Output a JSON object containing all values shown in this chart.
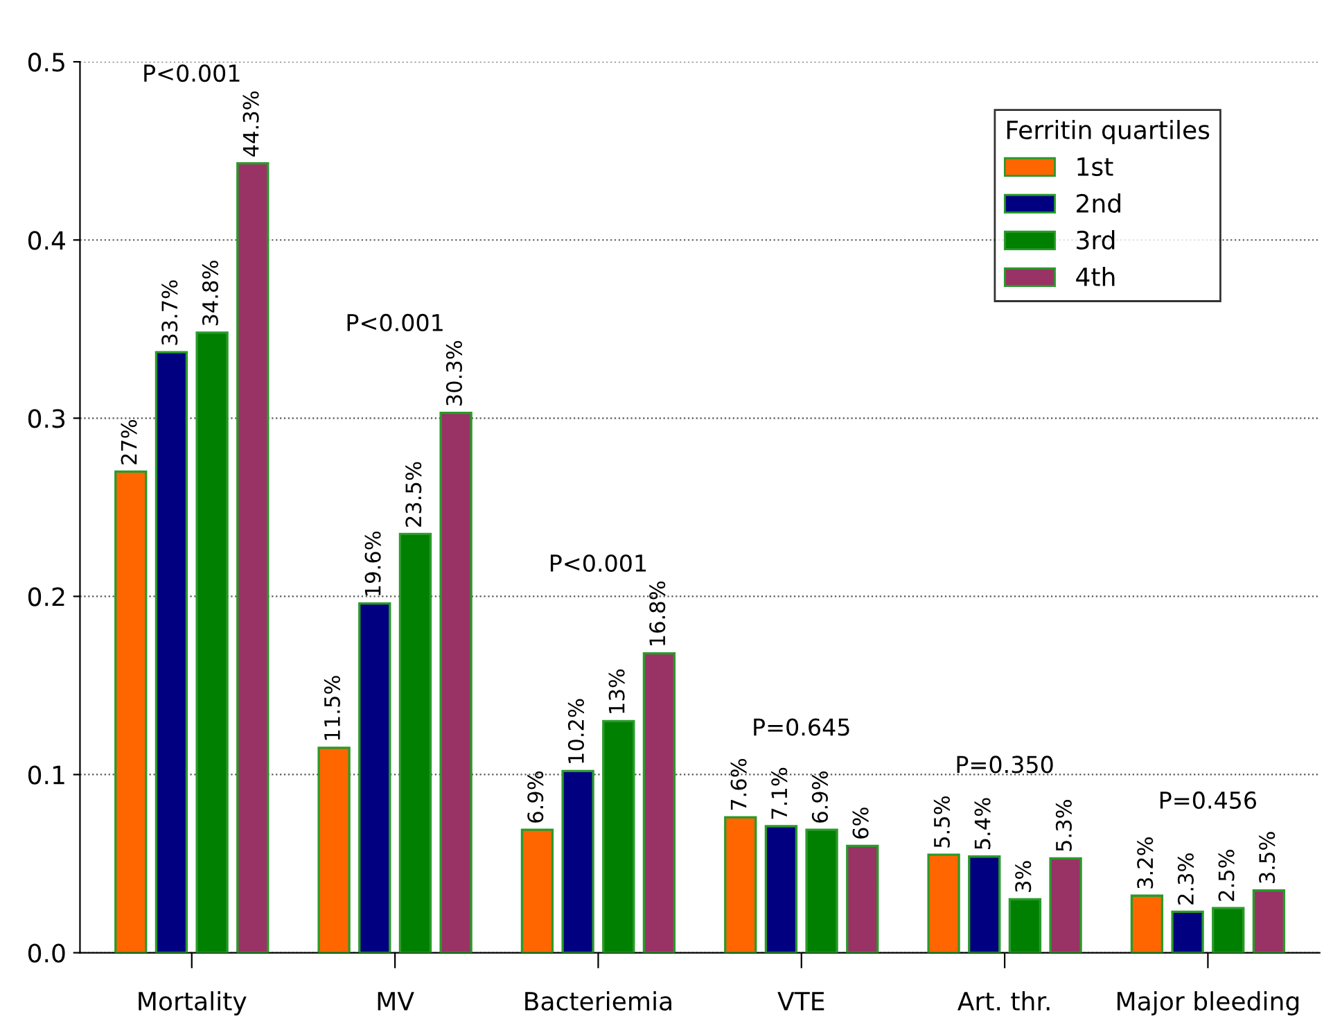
{
  "chart_data": {
    "type": "bar",
    "categories": [
      "Mortality",
      "MV",
      "Bacteriemia",
      "VTE",
      "Art. thr.",
      "Major bleeding"
    ],
    "series": [
      {
        "name": "1st",
        "color": "#ff6600",
        "values": [
          0.27,
          0.115,
          0.069,
          0.076,
          0.055,
          0.032
        ],
        "value_labels": [
          "27%",
          "11.5%",
          "6.9%",
          "7.6%",
          "5.5%",
          "3.2%"
        ]
      },
      {
        "name": "2nd",
        "color": "#000080",
        "values": [
          0.337,
          0.196,
          0.102,
          0.071,
          0.054,
          0.023
        ],
        "value_labels": [
          "33.7%",
          "19.6%",
          "10.2%",
          "7.1%",
          "5.4%",
          "2.3%"
        ]
      },
      {
        "name": "3rd",
        "color": "#008000",
        "values": [
          0.348,
          0.235,
          0.13,
          0.069,
          0.03,
          0.025
        ],
        "value_labels": [
          "34.8%",
          "23.5%",
          "13%",
          "6.9%",
          "3%",
          "2.5%"
        ]
      },
      {
        "name": "4th",
        "color": "#993366",
        "values": [
          0.443,
          0.303,
          0.168,
          0.06,
          0.053,
          0.035
        ],
        "value_labels": [
          "44.3%",
          "30.3%",
          "16.8%",
          "6%",
          "5.3%",
          "3.5%"
        ]
      }
    ],
    "legend_title": "Ferritin quartiles",
    "legend": "top right",
    "ylim": [
      0,
      0.5
    ],
    "yticks": [
      {
        "value": 0,
        "label": "0.0"
      },
      0.1,
      0.2,
      0.3,
      0.4,
      0.5
    ],
    "grid": "y",
    "annotations": [
      "P<0.001",
      "P<0.001",
      "P<0.001",
      "P=0.645",
      "P=0.350",
      "P=0.456"
    ]
  }
}
